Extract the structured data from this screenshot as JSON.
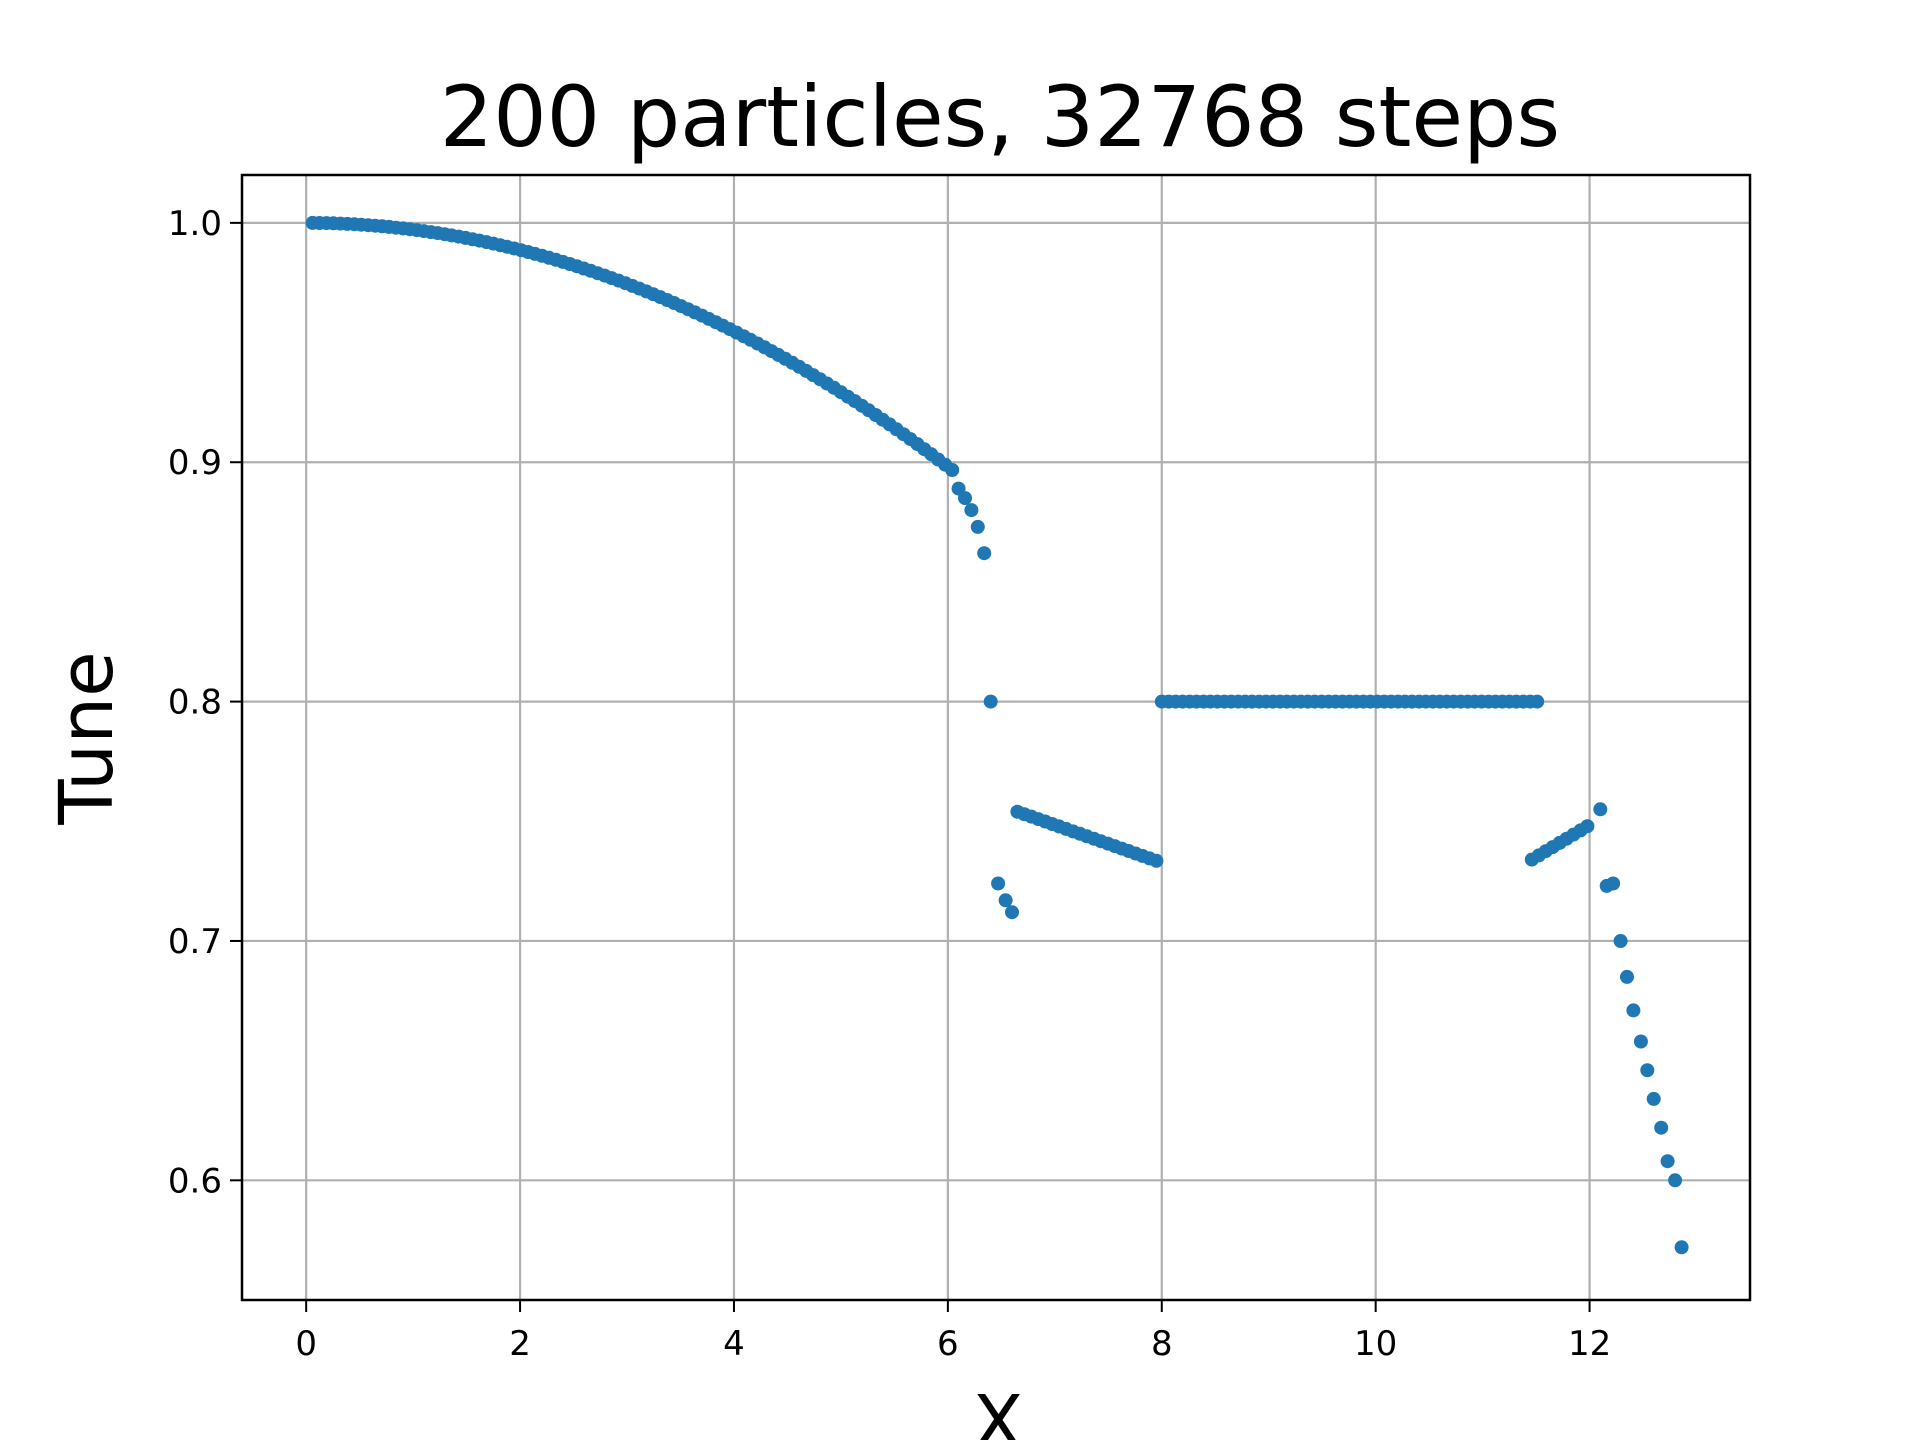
{
  "chart_data": {
    "type": "scatter",
    "title": "200 particles, 32768 steps",
    "xlabel": "X",
    "ylabel": "Tune",
    "xlim": [
      -0.6,
      13.5
    ],
    "ylim": [
      0.55,
      1.02
    ],
    "xticks": [
      "0",
      "2",
      "4",
      "6",
      "8",
      "10",
      "12"
    ],
    "yticks": [
      "0.6",
      "0.7",
      "0.8",
      "0.9",
      "1.0"
    ],
    "grid": true,
    "marker_color": "#1f77b4",
    "series": [
      {
        "segments": [
          {
            "curve": "one_minus_k_x2",
            "x_start": 0.06,
            "x_end": 6.05,
            "x_step": 0.065,
            "k": 0.00283
          },
          {
            "curve": "linear",
            "x_start": 6.65,
            "x_end": 7.98,
            "x_step": 0.065,
            "y_start": 0.754,
            "y_end": 0.733
          },
          {
            "curve": "constant",
            "x_start": 8.0,
            "x_end": 11.52,
            "x_step": 0.065,
            "y": 0.8
          },
          {
            "curve": "linear",
            "x_start": 11.46,
            "x_end": 12.02,
            "x_step": 0.065,
            "y_start": 0.734,
            "y_end": 0.749
          }
        ],
        "points": [
          [
            6.1,
            0.889
          ],
          [
            6.16,
            0.885
          ],
          [
            6.22,
            0.88
          ],
          [
            6.28,
            0.873
          ],
          [
            6.34,
            0.862
          ],
          [
            6.4,
            0.8
          ],
          [
            6.47,
            0.724
          ],
          [
            6.54,
            0.717
          ],
          [
            6.6,
            0.712
          ],
          [
            12.1,
            0.755
          ],
          [
            12.16,
            0.723
          ],
          [
            12.22,
            0.724
          ],
          [
            12.29,
            0.7
          ],
          [
            12.35,
            0.685
          ],
          [
            12.41,
            0.671
          ],
          [
            12.48,
            0.658
          ],
          [
            12.54,
            0.646
          ],
          [
            12.6,
            0.634
          ],
          [
            12.67,
            0.622
          ],
          [
            12.73,
            0.608
          ],
          [
            12.8,
            0.6
          ],
          [
            12.86,
            0.572
          ]
        ]
      }
    ]
  }
}
